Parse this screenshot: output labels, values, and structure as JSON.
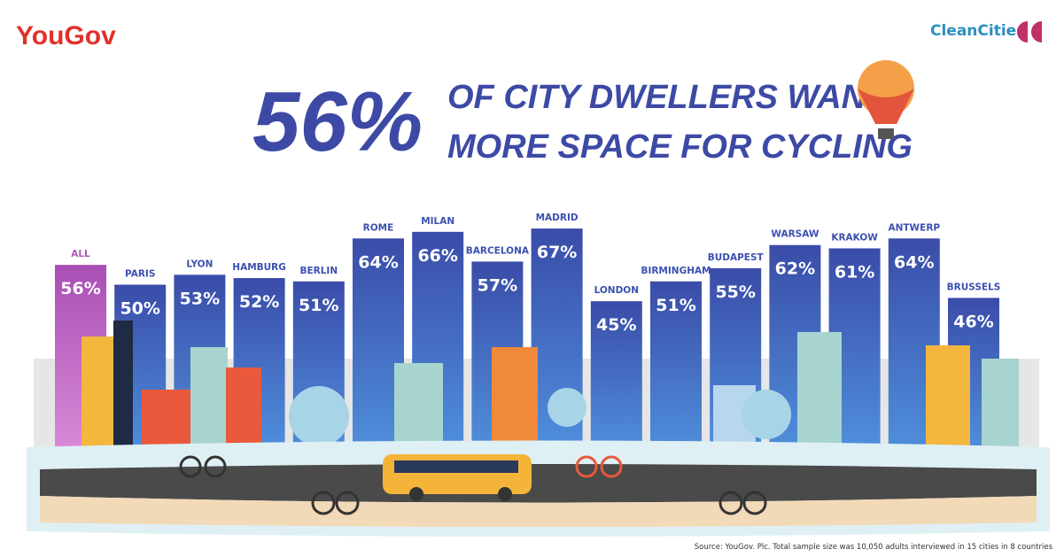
{
  "brand": "YouGov",
  "partner": "CleanCities",
  "headline": {
    "figure": "56%",
    "lines": [
      "OF CITY DWELLERS WANT",
      "MORE SPACE FOR CYCLING"
    ]
  },
  "source": "Source: YouGov. Plc. Total sample size was 10,050 adults interviewed in 15 cities in 8 countries",
  "chart_data": {
    "type": "bar",
    "categories": [
      "ALL",
      "PARIS",
      "LYON",
      "HAMBURG",
      "BERLIN",
      "ROME",
      "MILAN",
      "BARCELONA",
      "MADRID",
      "LONDON",
      "BIRMINGHAM",
      "BUDAPEST",
      "WARSAW",
      "KRAKOW",
      "ANTWERP",
      "BRUSSELS"
    ],
    "values": [
      56,
      50,
      53,
      52,
      51,
      64,
      66,
      57,
      67,
      45,
      51,
      55,
      62,
      61,
      64,
      46
    ],
    "value_labels": [
      "56%",
      "50%",
      "53%",
      "52%",
      "51%",
      "64%",
      "66%",
      "57%",
      "67%",
      "45%",
      "51%",
      "55%",
      "62%",
      "61%",
      "64%",
      "46%"
    ],
    "color": "#3b50b0",
    "highlight_color": "#b25abd"
  }
}
